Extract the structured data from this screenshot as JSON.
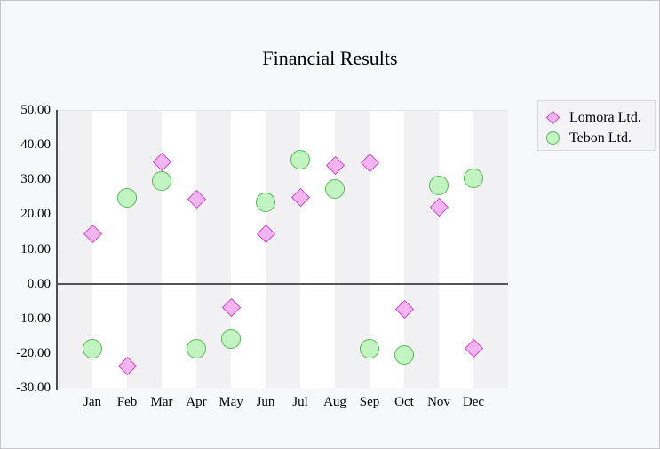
{
  "page": {
    "background": "#f7f8fc",
    "border_color": "#c5c5c9"
  },
  "chart_data": {
    "type": "scatter",
    "title": "Financial Results",
    "categories": [
      "Jan",
      "Feb",
      "Mar",
      "Apr",
      "May",
      "Jun",
      "Jul",
      "Aug",
      "Sep",
      "Oct",
      "Nov",
      "Dec"
    ],
    "series": [
      {
        "name": "Lomora Ltd.",
        "marker": "diamond",
        "fill": "#f3b4f1",
        "stroke": "#c44fc4",
        "values": [
          14.7,
          -23.5,
          35.4,
          24.6,
          -6.6,
          14.7,
          25.1,
          34.3,
          35.1,
          -7.2,
          22.2,
          -18.3
        ]
      },
      {
        "name": "Tebon Ltd.",
        "marker": "circle",
        "fill": "#c1f4c1",
        "stroke": "#57b957",
        "values": [
          -18.4,
          24.9,
          29.8,
          -18.6,
          -15.6,
          23.8,
          36.0,
          27.6,
          -18.4,
          -20.2,
          28.6,
          30.5
        ]
      }
    ],
    "ylim": [
      -30,
      50
    ],
    "ytick_step": 10,
    "ytick_labels": [
      "50.00",
      "40.00",
      "30.00",
      "20.00",
      "10.00",
      "0.00",
      "-10.00",
      "-20.00",
      "-30.00"
    ],
    "xlabel": "",
    "ylabel": "",
    "grid": {
      "column_bands": true,
      "band_colors": [
        "#f1f1f3",
        "#ffffff"
      ],
      "zero_line": true
    },
    "legend_position": "top-right"
  }
}
